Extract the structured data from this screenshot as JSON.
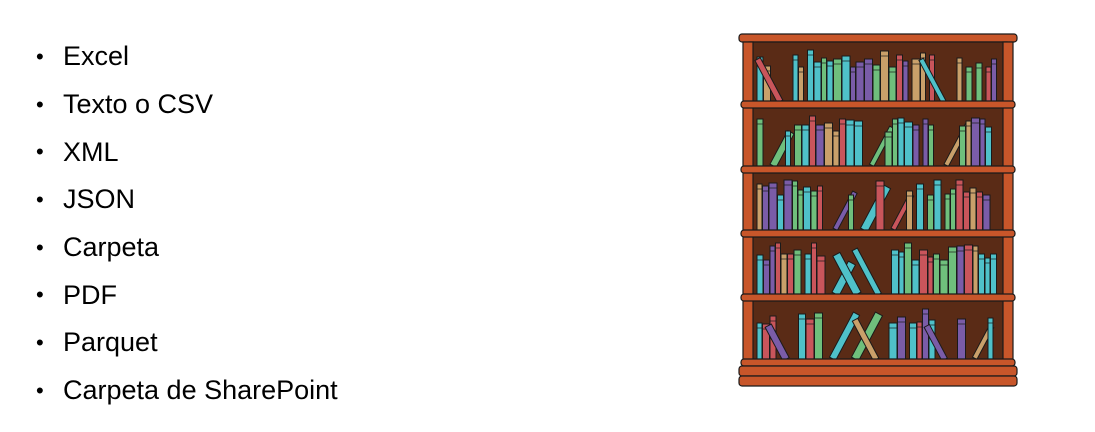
{
  "bullet_symbol": "•",
  "items": [
    "Excel",
    "Texto o CSV",
    "XML",
    "JSON",
    "Carpeta",
    "PDF",
    "Parquet",
    "Carpeta de SharePoint"
  ],
  "illustration": {
    "icon": "bookshelf-icon",
    "colors": {
      "wood": "#c8562a",
      "wood_dark": "#8a3214",
      "back_panel": "#5a2b16",
      "book_teal": "#4fc1c9",
      "book_green": "#6fbf7c",
      "book_purple": "#7a5ca8",
      "book_red": "#c9555b",
      "book_tan": "#c9a06a"
    }
  }
}
